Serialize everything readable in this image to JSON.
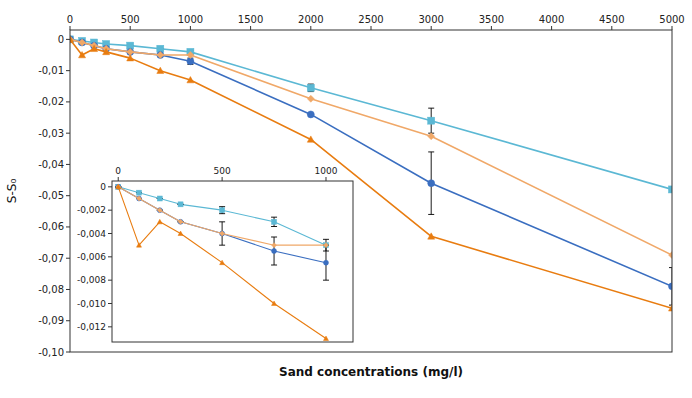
{
  "chart_data": [
    {
      "type": "line",
      "xlabel": "Sand concentrations (mg/l)",
      "ylabel": "S-S₀",
      "x": [
        0,
        100,
        200,
        300,
        500,
        750,
        1000,
        2000,
        3000,
        5000
      ],
      "xlim": [
        0,
        5000
      ],
      "ylim": [
        -0.1,
        0.003
      ],
      "xticks": [
        0,
        500,
        1000,
        1500,
        2000,
        2500,
        3000,
        3500,
        4000,
        4500,
        5000
      ],
      "yticks": [
        0,
        {
          "value": -0.01,
          "label": "-0,01"
        },
        {
          "value": -0.02,
          "label": "-0,02"
        },
        {
          "value": -0.03,
          "label": "-0,03"
        },
        {
          "value": -0.04,
          "label": "-0,04"
        },
        {
          "value": -0.05,
          "label": "-0,05"
        },
        {
          "value": -0.06,
          "label": "-0,06"
        },
        {
          "value": -0.07,
          "label": "-0,07"
        },
        {
          "value": -0.08,
          "label": "-0,08"
        },
        {
          "value": -0.09,
          "label": "-0,09"
        },
        {
          "value": -0.1,
          "label": "-0,10"
        }
      ],
      "series": [
        {
          "color": "#5BB8D4",
          "marker": "square",
          "values": [
            0,
            -0.0005,
            -0.001,
            -0.0015,
            -0.002,
            -0.003,
            -0.004,
            -0.0155,
            -0.026,
            -0.048
          ],
          "errors": [
            0,
            0,
            0,
            0,
            0,
            0,
            0.0005,
            0.0012,
            0.004,
            0
          ]
        },
        {
          "color": "#3A6EC0",
          "marker": "circle",
          "values": [
            0,
            -0.001,
            -0.002,
            -0.003,
            -0.004,
            -0.005,
            -0.007,
            -0.024,
            -0.046,
            -0.079
          ],
          "errors": [
            0,
            0,
            0,
            0,
            0,
            0,
            0.001,
            0,
            0.01,
            0.006
          ]
        },
        {
          "color": "#F0A868",
          "marker": "diamond",
          "values": [
            0,
            -0.001,
            -0.002,
            -0.003,
            -0.004,
            -0.005,
            -0.005,
            -0.019,
            -0.031,
            -0.069
          ]
        },
        {
          "color": "#E87C10",
          "marker": "triangle",
          "values": [
            0,
            -0.005,
            -0.003,
            -0.004,
            -0.006,
            -0.01,
            -0.013,
            -0.032,
            -0.063,
            -0.086
          ]
        }
      ]
    },
    {
      "type": "line",
      "x": [
        0,
        100,
        200,
        300,
        500,
        750,
        1000
      ],
      "xlim": [
        -30,
        1130
      ],
      "ylim": [
        -0.0133,
        0.0005
      ],
      "xticks": [
        0,
        500,
        1000
      ],
      "yticks": [
        0,
        {
          "value": -0.002,
          "label": "-0,002"
        },
        {
          "value": -0.004,
          "label": "-0,004"
        },
        {
          "value": -0.006,
          "label": "-0,006"
        },
        {
          "value": -0.008,
          "label": "-0,008"
        },
        {
          "value": -0.01,
          "label": "-0,010"
        },
        {
          "value": -0.012,
          "label": "-0,012"
        }
      ],
      "series": [
        {
          "color": "#5BB8D4",
          "marker": "square",
          "values": [
            0,
            -0.0005,
            -0.001,
            -0.0015,
            -0.002,
            -0.003,
            -0.005
          ],
          "errors": [
            0,
            0,
            0,
            0,
            0.0003,
            0.0004,
            0.0005
          ]
        },
        {
          "color": "#3A6EC0",
          "marker": "circle",
          "values": [
            0,
            -0.001,
            -0.002,
            -0.003,
            -0.004,
            -0.0055,
            -0.0065
          ],
          "errors": [
            0,
            0,
            0,
            0,
            0.001,
            0.0012,
            0.0015
          ]
        },
        {
          "color": "#F0A868",
          "marker": "diamond",
          "values": [
            0,
            -0.001,
            -0.002,
            -0.003,
            -0.004,
            -0.005,
            -0.005
          ]
        },
        {
          "color": "#E87C10",
          "marker": "triangle",
          "values": [
            0,
            -0.005,
            -0.003,
            -0.004,
            -0.0065,
            -0.01,
            -0.013
          ]
        }
      ]
    }
  ]
}
